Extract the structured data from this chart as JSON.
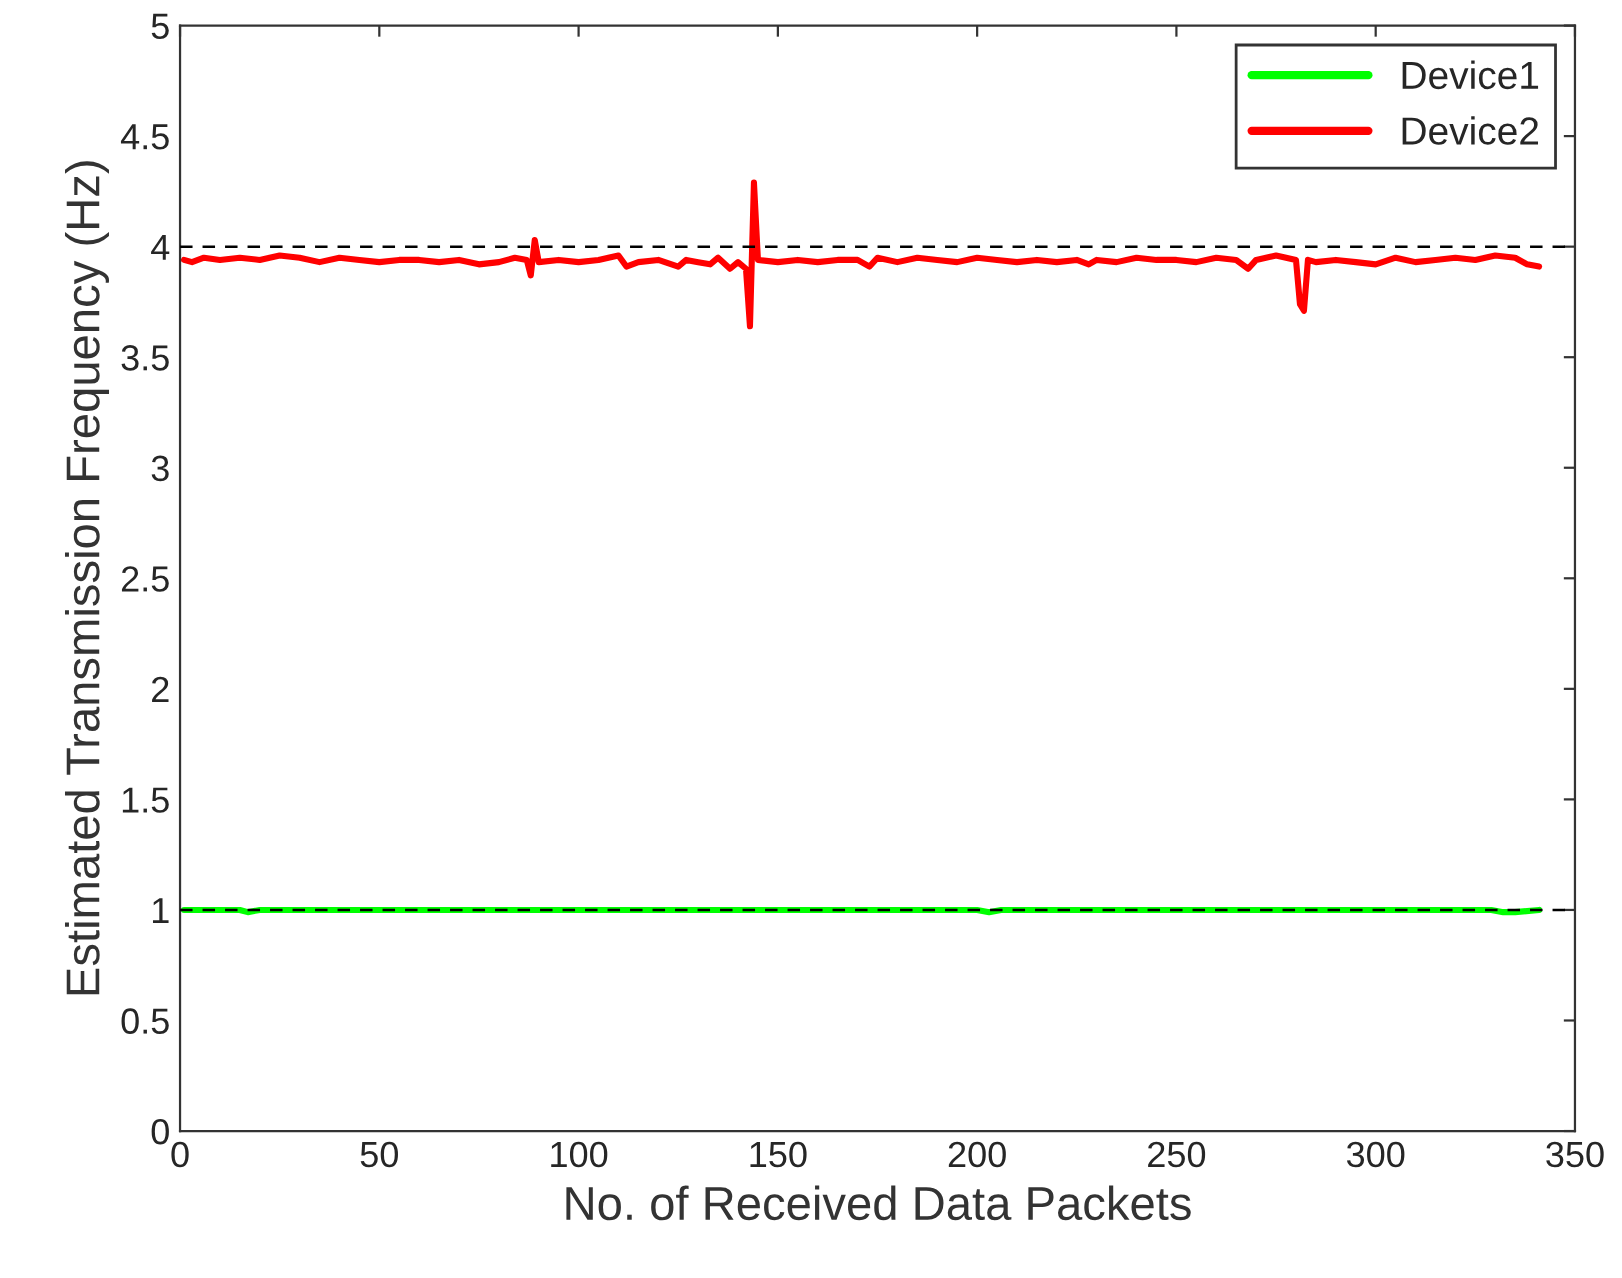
{
  "chart_data": {
    "type": "line",
    "xlabel": "No. of Received Data Packets",
    "ylabel": "Estimated Transmission Frequency (Hz)",
    "xlim": [
      0,
      350
    ],
    "xticks": [
      0,
      50,
      100,
      150,
      200,
      250,
      300,
      350
    ],
    "ylim": [
      0,
      5
    ],
    "yticks": [
      0,
      0.5,
      1,
      1.5,
      2,
      2.5,
      3,
      3.5,
      4,
      4.5,
      5
    ],
    "grid": false,
    "legend": "top right",
    "line_style": "solid",
    "marker": "none",
    "ref_lines": [
      {
        "axis": "y",
        "value": 1,
        "color": "#000000",
        "line_style": "dashed"
      },
      {
        "axis": "y",
        "value": 4,
        "color": "#000000",
        "line_style": "dashed"
      }
    ],
    "series": [
      {
        "name": "Device1",
        "color": "#00ff00",
        "x": [
          1,
          10,
          15,
          17,
          20,
          50,
          100,
          150,
          200,
          203,
          206,
          250,
          300,
          329,
          332,
          335,
          341
        ],
        "values": [
          1.0,
          1.0,
          1.0,
          0.99,
          1.0,
          1.0,
          1.0,
          1.0,
          1.0,
          0.99,
          1.0,
          1.0,
          1.0,
          1.0,
          0.99,
          0.99,
          1.0
        ]
      },
      {
        "name": "Device2",
        "color": "#ff0000",
        "x": [
          1,
          3,
          6,
          10,
          15,
          20,
          25,
          30,
          35,
          40,
          45,
          50,
          55,
          60,
          65,
          70,
          75,
          80,
          84,
          87,
          88,
          89,
          90,
          95,
          100,
          105,
          110,
          112,
          115,
          120,
          125,
          127,
          130,
          133,
          135,
          138,
          140,
          142,
          143,
          144,
          145,
          150,
          155,
          160,
          165,
          170,
          173,
          175,
          180,
          185,
          190,
          195,
          200,
          205,
          210,
          215,
          220,
          225,
          228,
          230,
          235,
          240,
          245,
          250,
          255,
          260,
          265,
          268,
          270,
          275,
          280,
          281,
          282,
          283,
          285,
          290,
          295,
          300,
          305,
          310,
          315,
          320,
          325,
          330,
          335,
          338,
          341
        ],
        "values": [
          3.94,
          3.93,
          3.95,
          3.94,
          3.95,
          3.94,
          3.96,
          3.95,
          3.93,
          3.95,
          3.94,
          3.93,
          3.94,
          3.94,
          3.93,
          3.94,
          3.92,
          3.93,
          3.95,
          3.94,
          3.87,
          4.03,
          3.93,
          3.94,
          3.93,
          3.94,
          3.96,
          3.91,
          3.93,
          3.94,
          3.91,
          3.94,
          3.93,
          3.92,
          3.95,
          3.9,
          3.93,
          3.9,
          3.64,
          4.29,
          3.94,
          3.93,
          3.94,
          3.93,
          3.94,
          3.94,
          3.91,
          3.95,
          3.93,
          3.95,
          3.94,
          3.93,
          3.95,
          3.94,
          3.93,
          3.94,
          3.93,
          3.94,
          3.92,
          3.94,
          3.93,
          3.95,
          3.94,
          3.94,
          3.93,
          3.95,
          3.94,
          3.9,
          3.94,
          3.96,
          3.94,
          3.74,
          3.71,
          3.94,
          3.93,
          3.94,
          3.93,
          3.92,
          3.95,
          3.93,
          3.94,
          3.95,
          3.94,
          3.96,
          3.95,
          3.92,
          3.91
        ]
      }
    ]
  }
}
